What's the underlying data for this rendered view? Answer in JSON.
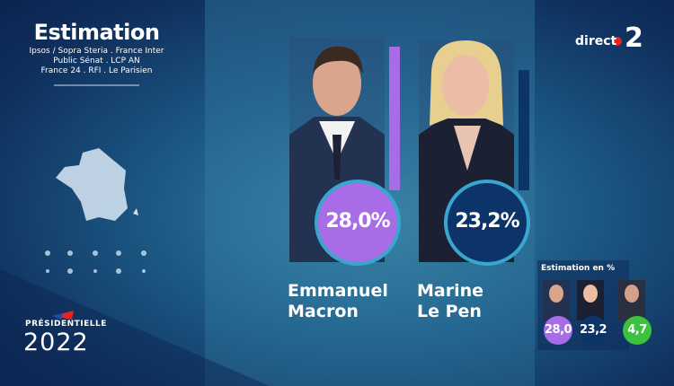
{
  "header": {
    "title": "Estimation",
    "sources": [
      "Ipsos / Sopra Steria . France Inter",
      "Public Sénat . LCP AN",
      "France 24 . RFI . Le Parisien"
    ]
  },
  "channel": {
    "prefix": "direct",
    "number": "2"
  },
  "candidates": [
    {
      "first_name": "Emmanuel",
      "last_name": "Macron",
      "score": "28,0%"
    },
    {
      "first_name": "Marine",
      "last_name": "Le Pen",
      "score": "23,2%"
    }
  ],
  "mini_panel": {
    "title": "Estimation en %",
    "scores": [
      "28,0",
      "23,2",
      "4,7"
    ]
  },
  "event": {
    "name": "PRÉSIDENTIELLE",
    "year": "2022"
  }
}
